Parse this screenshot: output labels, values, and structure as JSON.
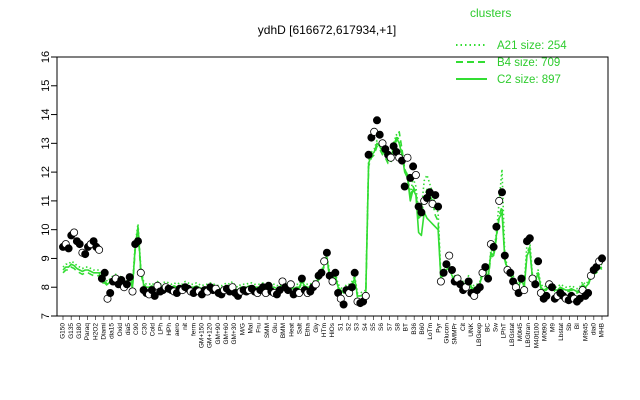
{
  "chart_data": {
    "type": "line",
    "title": "ydhD [616672,617934,+1]",
    "xlabel": "",
    "ylabel": "",
    "ylim": [
      7,
      16
    ],
    "yticks": [
      "7",
      "8",
      "9",
      "10",
      "11",
      "12",
      "13",
      "14",
      "15",
      "16"
    ],
    "colors": {
      "lines": "#33dd33",
      "points": "#000000",
      "axis": "#000000",
      "legend": "#2ecc2e"
    },
    "legend": {
      "title": "clusters",
      "placement": "top-right",
      "entries": [
        {
          "label": "A21 size: 254",
          "style": "dotted"
        },
        {
          "label": "B4 size: 709",
          "style": "dashed"
        },
        {
          "label": "C2 size: 897",
          "style": "solid"
        }
      ]
    },
    "x_tick_labels": [
      "G150",
      "G135",
      "G180",
      "Paraq",
      "H2O2",
      "Diami",
      "dia15",
      "Oxid",
      "dia5",
      "C90",
      "C30",
      "Cold",
      "LPh",
      "HPh",
      "aero",
      "nit",
      "ferm",
      "GM+150",
      "GM+120",
      "GM+90",
      "GM+60",
      "GM+30",
      "M/G",
      "Mal",
      "Fru",
      "SMM",
      "Glu",
      "BMM",
      "Heat",
      "Salt",
      "Etha",
      "Gly",
      "HTm",
      "HiOs",
      "S1",
      "S2",
      "S3",
      "S4",
      "S5",
      "S6",
      "S7",
      "S8",
      "BT",
      "B36",
      "B60",
      "LoTm",
      "Pyr",
      "Glucon",
      "SMMPr",
      "Cit",
      "UNK",
      "LBGexp",
      "BC",
      "Sw",
      "LPhT",
      "LBGstat",
      "M0t45",
      "LBGtran",
      "M40t100",
      "M0t90",
      "M9",
      "Lbstat",
      "Sb",
      "BI",
      "M9t45",
      "dia0",
      "MHB"
    ],
    "points_y": [
      9.4,
      9.5,
      9.35,
      9.8,
      9.9,
      9.6,
      9.5,
      9.2,
      9.15,
      9.4,
      9.5,
      9.6,
      9.4,
      9.3,
      8.3,
      8.5,
      7.6,
      7.8,
      8.2,
      8.3,
      8.1,
      8.25,
      8.0,
      8.1,
      8.35,
      7.85,
      9.5,
      9.6,
      8.5,
      7.9,
      7.8,
      7.75,
      7.9,
      7.7,
      8.05,
      7.85,
      7.9,
      8.0,
      7.95,
      7.9,
      7.85,
      7.8,
      7.95,
      7.9,
      8.0,
      7.95,
      7.85,
      7.8,
      7.9,
      7.85,
      7.75,
      7.9,
      7.85,
      8.0,
      7.9,
      7.95,
      7.8,
      7.75,
      7.9,
      7.95,
      7.85,
      8.0,
      7.8,
      7.7,
      7.85,
      7.9,
      7.85,
      7.9,
      7.95,
      7.85,
      7.8,
      7.9,
      8.0,
      7.8,
      8.05,
      7.85,
      7.8,
      7.75,
      7.9,
      8.2,
      8.0,
      7.9,
      8.1,
      7.75,
      7.85,
      7.8,
      8.3,
      7.9,
      7.8,
      7.85,
      8.0,
      8.1,
      8.4,
      8.5,
      8.9,
      9.2,
      8.4,
      8.2,
      8.5,
      7.8,
      7.6,
      7.4,
      7.9,
      7.8,
      8.0,
      8.5,
      7.5,
      7.45,
      7.5,
      7.7,
      12.6,
      13.2,
      13.4,
      13.8,
      13.3,
      13.0,
      12.8,
      12.6,
      12.5,
      12.9,
      12.7,
      12.5,
      12.4,
      11.5,
      12.5,
      11.8,
      12.2,
      11.9,
      10.8,
      10.6,
      11.0,
      11.1,
      11.3,
      10.9,
      11.2,
      10.8,
      8.2,
      8.5,
      8.8,
      9.1,
      8.6,
      8.2,
      8.3,
      8.1,
      7.9,
      8.0,
      8.2,
      7.8,
      7.7,
      7.9,
      8.0,
      8.5,
      8.7,
      8.3,
      9.5,
      9.4,
      10.1,
      11.0,
      11.3,
      9.1,
      8.6,
      8.5,
      8.2,
      8.0,
      7.8,
      8.3,
      7.9,
      9.6,
      9.7,
      8.3,
      8.1,
      8.9,
      7.8,
      7.6,
      7.7,
      8.1,
      8.0,
      7.6,
      7.7,
      7.8,
      7.7,
      7.6,
      7.55,
      7.7,
      7.6,
      7.5,
      7.6,
      7.9,
      7.7,
      7.8,
      8.4,
      8.6,
      8.7,
      8.9,
      9.0
    ],
    "series": [
      {
        "style": "solid",
        "values": [
          8.6,
          8.7,
          8.7,
          8.8,
          8.75,
          8.65,
          8.6,
          8.55,
          8.6,
          8.6,
          8.55,
          8.5,
          8.5,
          8.5,
          8.2,
          8.2,
          8.1,
          8.2,
          8.3,
          8.35,
          8.2,
          8.3,
          8.1,
          8.2,
          8.4,
          8.0,
          9.4,
          10.1,
          8.6,
          8.1,
          8.0,
          8.0,
          8.05,
          7.95,
          8.1,
          8.0,
          8.05,
          8.1,
          8.05,
          8.0,
          8.05,
          8.0,
          8.05,
          8.0,
          8.1,
          8.05,
          8.0,
          8.0,
          8.05,
          8.0,
          7.95,
          8.0,
          8.0,
          8.05,
          8.0,
          8.0,
          7.95,
          7.95,
          8.0,
          8.05,
          8.0,
          8.1,
          7.95,
          7.9,
          8.0,
          8.0,
          8.0,
          8.05,
          8.05,
          8.0,
          8.0,
          8.0,
          8.05,
          7.95,
          8.1,
          8.0,
          8.0,
          7.95,
          8.0,
          8.15,
          8.05,
          8.0,
          8.1,
          7.95,
          8.0,
          8.0,
          8.2,
          8.05,
          8.0,
          8.0,
          8.1,
          8.15,
          8.3,
          8.4,
          8.8,
          9.0,
          8.4,
          8.3,
          8.4,
          8.0,
          7.9,
          7.8,
          8.0,
          8.0,
          8.1,
          8.3,
          7.7,
          7.7,
          7.75,
          7.8,
          12.3,
          12.6,
          12.7,
          13.0,
          12.9,
          12.7,
          12.6,
          12.4,
          12.4,
          12.9,
          13.2,
          13.0,
          12.6,
          12.0,
          11.8,
          11.0,
          11.4,
          11.2,
          9.9,
          9.8,
          10.6,
          10.4,
          10.3,
          10.2,
          10.1,
          10.0,
          8.3,
          8.5,
          8.6,
          8.7,
          8.4,
          8.3,
          8.35,
          8.2,
          8.1,
          8.15,
          8.3,
          8.0,
          7.95,
          8.0,
          8.1,
          8.5,
          8.6,
          8.3,
          9.2,
          9.1,
          9.8,
          10.4,
          10.6,
          9.0,
          8.6,
          8.4,
          8.3,
          8.1,
          8.0,
          8.3,
          8.0,
          9.1,
          9.3,
          8.3,
          8.2,
          8.5,
          8.0,
          7.9,
          7.95,
          8.1,
          8.05,
          7.9,
          7.9,
          8.0,
          7.95,
          7.9,
          7.9,
          7.95,
          7.9,
          7.85,
          7.9,
          8.1,
          8.0,
          8.1,
          8.4,
          8.5,
          8.55,
          8.65,
          8.7
        ]
      },
      {
        "style": "dashed",
        "values": [
          8.5,
          8.6,
          8.6,
          8.7,
          8.65,
          8.55,
          8.5,
          8.45,
          8.5,
          8.5,
          8.45,
          8.4,
          8.4,
          8.4,
          8.15,
          8.15,
          8.05,
          8.15,
          8.25,
          8.3,
          8.15,
          8.25,
          8.05,
          8.15,
          8.35,
          7.95,
          9.3,
          10.0,
          8.5,
          8.05,
          7.95,
          7.95,
          8.0,
          7.9,
          8.05,
          7.95,
          8.0,
          8.05,
          8.0,
          7.95,
          8.0,
          7.95,
          8.0,
          7.95,
          8.05,
          8.0,
          7.95,
          7.95,
          8.0,
          7.95,
          7.9,
          7.95,
          7.95,
          8.0,
          7.95,
          7.95,
          7.9,
          7.9,
          7.95,
          8.0,
          7.95,
          8.05,
          7.9,
          7.85,
          7.95,
          7.95,
          7.95,
          8.0,
          8.0,
          7.95,
          7.95,
          7.95,
          8.0,
          7.9,
          8.05,
          7.95,
          7.95,
          7.9,
          7.95,
          8.1,
          8.0,
          7.95,
          8.05,
          7.9,
          7.95,
          7.95,
          8.15,
          8.0,
          7.95,
          7.95,
          8.05,
          8.1,
          8.25,
          8.35,
          8.75,
          8.95,
          8.35,
          8.25,
          8.35,
          7.95,
          7.85,
          7.75,
          7.95,
          7.95,
          8.05,
          8.25,
          7.65,
          7.65,
          7.7,
          7.75,
          12.2,
          12.5,
          12.6,
          12.9,
          12.8,
          12.6,
          12.5,
          12.3,
          12.3,
          12.8,
          13.1,
          13.4,
          12.8,
          12.1,
          11.9,
          11.1,
          11.5,
          11.3,
          10.4,
          10.5,
          11.1,
          11.4,
          11.2,
          11.0,
          10.5,
          10.3,
          8.25,
          8.45,
          8.55,
          8.65,
          8.35,
          8.25,
          8.3,
          8.15,
          8.05,
          8.1,
          8.25,
          7.95,
          7.9,
          7.95,
          8.05,
          8.45,
          8.55,
          8.25,
          9.1,
          9.05,
          9.7,
          10.5,
          10.8,
          8.95,
          8.55,
          8.35,
          8.25,
          8.05,
          7.95,
          8.25,
          7.95,
          9.2,
          9.4,
          8.25,
          8.15,
          8.45,
          7.95,
          7.85,
          7.9,
          8.05,
          8.0,
          7.85,
          7.85,
          7.95,
          7.9,
          7.85,
          7.85,
          7.9,
          7.85,
          7.8,
          7.85,
          8.05,
          7.95,
          8.05,
          8.35,
          8.45,
          8.5,
          8.6,
          8.65
        ]
      },
      {
        "style": "dotted",
        "values": [
          8.7,
          8.8,
          8.8,
          8.9,
          8.85,
          8.75,
          8.7,
          8.65,
          8.7,
          8.7,
          8.65,
          8.6,
          8.6,
          8.6,
          8.3,
          8.3,
          8.2,
          8.3,
          8.4,
          8.45,
          8.3,
          8.4,
          8.2,
          8.3,
          8.5,
          8.1,
          9.5,
          10.2,
          8.7,
          8.2,
          8.1,
          8.1,
          8.15,
          8.05,
          8.2,
          8.1,
          8.15,
          8.2,
          8.15,
          8.1,
          8.15,
          8.1,
          8.15,
          8.1,
          8.2,
          8.15,
          8.1,
          8.1,
          8.15,
          8.1,
          8.05,
          8.1,
          8.1,
          8.15,
          8.1,
          8.1,
          8.05,
          8.05,
          8.1,
          8.15,
          8.1,
          8.2,
          8.05,
          8.0,
          8.1,
          8.1,
          8.1,
          8.15,
          8.15,
          8.1,
          8.1,
          8.1,
          8.15,
          8.05,
          8.2,
          8.1,
          8.1,
          8.05,
          8.1,
          8.25,
          8.15,
          8.1,
          8.2,
          8.05,
          8.1,
          8.1,
          8.3,
          8.15,
          8.1,
          8.1,
          8.2,
          8.25,
          8.4,
          8.5,
          8.9,
          9.1,
          8.5,
          8.4,
          8.5,
          8.1,
          8.0,
          7.9,
          8.1,
          8.1,
          8.2,
          8.4,
          7.8,
          7.8,
          7.85,
          7.9,
          12.4,
          12.7,
          12.8,
          13.1,
          13.0,
          12.8,
          12.7,
          12.5,
          12.5,
          13.0,
          13.3,
          13.1,
          12.7,
          12.1,
          11.9,
          11.2,
          11.8,
          11.5,
          10.6,
          10.7,
          11.7,
          11.9,
          11.6,
          11.3,
          10.8,
          10.6,
          8.4,
          8.6,
          8.7,
          8.8,
          8.5,
          8.4,
          8.45,
          8.3,
          8.2,
          8.25,
          8.4,
          8.1,
          8.05,
          8.1,
          8.2,
          8.6,
          8.7,
          8.4,
          9.3,
          9.2,
          9.9,
          11.0,
          12.1,
          9.1,
          8.7,
          8.5,
          8.4,
          8.2,
          8.1,
          8.4,
          8.1,
          9.5,
          9.6,
          8.4,
          8.3,
          8.6,
          8.1,
          8.0,
          8.05,
          8.2,
          8.15,
          8.0,
          8.0,
          8.1,
          8.05,
          8.0,
          8.0,
          8.05,
          8.0,
          7.95,
          8.0,
          8.2,
          8.1,
          8.2,
          8.5,
          8.6,
          8.65,
          8.75,
          8.8
        ]
      }
    ]
  }
}
